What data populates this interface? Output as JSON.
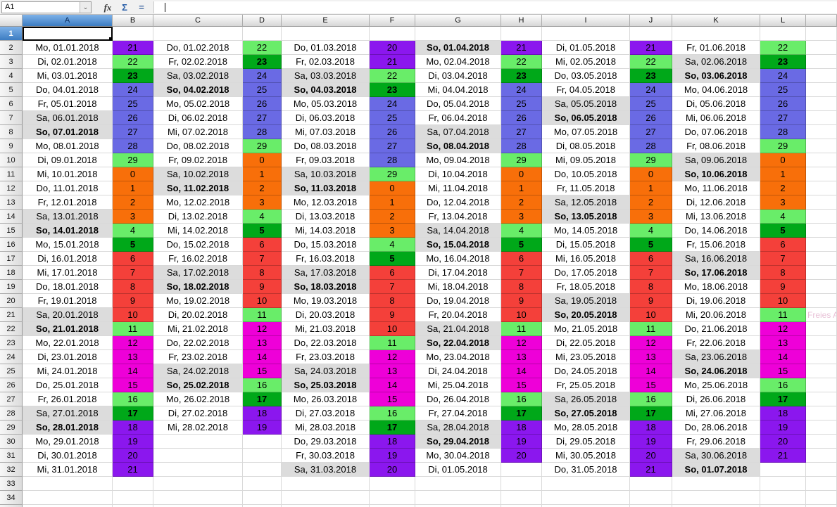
{
  "formula_bar": {
    "name_box_value": "A1",
    "dropdown_icon": "⌄",
    "function_wizard_icon": "fx",
    "sum_icon": "Σ",
    "formula_icon": "="
  },
  "sheet": {
    "selected_cell": "A1",
    "columns": [
      "A",
      "B",
      "C",
      "D",
      "E",
      "F",
      "G",
      "H",
      "I",
      "J",
      "K",
      "L"
    ],
    "row_count": 35,
    "last_full_row": 34,
    "note_overflow": {
      "text": "Freies Ar",
      "row": 21,
      "column": "M"
    }
  },
  "colors": {
    "purple": "#8b17ee",
    "light_green": "#69ed69",
    "dark_green": "#00a819",
    "blue": "#6a6ae4",
    "orange": "#f86f0a",
    "red": "#f4403a",
    "magenta": "#ee00d8",
    "weekend_gray": "#dcdcdc",
    "selection_header_blue": "#3c7cc2",
    "note_text": "#e9c2d8"
  },
  "number_color_map": {
    "0": "orange",
    "1": "orange",
    "2": "orange",
    "3": "orange",
    "4": "light_green",
    "5": "dark_green",
    "6": "red",
    "7": "red",
    "8": "red",
    "9": "red",
    "10": "red",
    "11": "light_green",
    "12": "magenta",
    "13": "magenta",
    "14": "magenta",
    "15": "magenta",
    "16": "light_green",
    "17": "dark_green",
    "18": "purple",
    "19": "purple",
    "20": "purple",
    "21": "purple",
    "22": "light_green",
    "23": "dark_green",
    "24": "blue",
    "25": "blue",
    "26": "blue",
    "27": "blue",
    "28": "blue",
    "29": "light_green"
  },
  "bold_numbers": [
    5,
    17,
    23
  ],
  "calendar": {
    "first_data_row": 2,
    "months": [
      {
        "date_column": "A",
        "number_column": "B",
        "days": [
          [
            "Mo, 01.01.2018",
            21
          ],
          [
            "Di, 02.01.2018",
            22
          ],
          [
            "Mi, 03.01.2018",
            23
          ],
          [
            "Do, 04.01.2018",
            24
          ],
          [
            "Fr, 05.01.2018",
            25
          ],
          [
            "Sa, 06.01.2018",
            26
          ],
          [
            "So, 07.01.2018",
            27
          ],
          [
            "Mo, 08.01.2018",
            28
          ],
          [
            "Di, 09.01.2018",
            29
          ],
          [
            "Mi, 10.01.2018",
            0
          ],
          [
            "Do, 11.01.2018",
            1
          ],
          [
            "Fr, 12.01.2018",
            2
          ],
          [
            "Sa, 13.01.2018",
            3
          ],
          [
            "So, 14.01.2018",
            4
          ],
          [
            "Mo, 15.01.2018",
            5
          ],
          [
            "Di, 16.01.2018",
            6
          ],
          [
            "Mi, 17.01.2018",
            7
          ],
          [
            "Do, 18.01.2018",
            8
          ],
          [
            "Fr, 19.01.2018",
            9
          ],
          [
            "Sa, 20.01.2018",
            10
          ],
          [
            "So, 21.01.2018",
            11
          ],
          [
            "Mo, 22.01.2018",
            12
          ],
          [
            "Di, 23.01.2018",
            13
          ],
          [
            "Mi, 24.01.2018",
            14
          ],
          [
            "Do, 25.01.2018",
            15
          ],
          [
            "Fr, 26.01.2018",
            16
          ],
          [
            "Sa, 27.01.2018",
            17
          ],
          [
            "So, 28.01.2018",
            18
          ],
          [
            "Mo, 29.01.2018",
            19
          ],
          [
            "Di, 30.01.2018",
            20
          ],
          [
            "Mi, 31.01.2018",
            21
          ]
        ]
      },
      {
        "date_column": "C",
        "number_column": "D",
        "days": [
          [
            "Do, 01.02.2018",
            22
          ],
          [
            "Fr, 02.02.2018",
            23
          ],
          [
            "Sa, 03.02.2018",
            24
          ],
          [
            "So, 04.02.2018",
            25
          ],
          [
            "Mo, 05.02.2018",
            26
          ],
          [
            "Di, 06.02.2018",
            27
          ],
          [
            "Mi, 07.02.2018",
            28
          ],
          [
            "Do, 08.02.2018",
            29
          ],
          [
            "Fr, 09.02.2018",
            0
          ],
          [
            "Sa, 10.02.2018",
            1
          ],
          [
            "So, 11.02.2018",
            2
          ],
          [
            "Mo, 12.02.2018",
            3
          ],
          [
            "Di, 13.02.2018",
            4
          ],
          [
            "Mi, 14.02.2018",
            5
          ],
          [
            "Do, 15.02.2018",
            6
          ],
          [
            "Fr, 16.02.2018",
            7
          ],
          [
            "Sa, 17.02.2018",
            8
          ],
          [
            "So, 18.02.2018",
            9
          ],
          [
            "Mo, 19.02.2018",
            10
          ],
          [
            "Di, 20.02.2018",
            11
          ],
          [
            "Mi, 21.02.2018",
            12
          ],
          [
            "Do, 22.02.2018",
            13
          ],
          [
            "Fr, 23.02.2018",
            14
          ],
          [
            "Sa, 24.02.2018",
            15
          ],
          [
            "So, 25.02.2018",
            16
          ],
          [
            "Mo, 26.02.2018",
            17
          ],
          [
            "Di, 27.02.2018",
            18
          ],
          [
            "Mi, 28.02.2018",
            19
          ]
        ]
      },
      {
        "date_column": "E",
        "number_column": "F",
        "days": [
          [
            "Do, 01.03.2018",
            20
          ],
          [
            "Fr, 02.03.2018",
            21
          ],
          [
            "Sa, 03.03.2018",
            22
          ],
          [
            "So, 04.03.2018",
            23
          ],
          [
            "Mo, 05.03.2018",
            24
          ],
          [
            "Di, 06.03.2018",
            25
          ],
          [
            "Mi, 07.03.2018",
            26
          ],
          [
            "Do, 08.03.2018",
            27
          ],
          [
            "Fr, 09.03.2018",
            28
          ],
          [
            "Sa, 10.03.2018",
            29
          ],
          [
            "So, 11.03.2018",
            0
          ],
          [
            "Mo, 12.03.2018",
            1
          ],
          [
            "Di, 13.03.2018",
            2
          ],
          [
            "Mi, 14.03.2018",
            3
          ],
          [
            "Do, 15.03.2018",
            4
          ],
          [
            "Fr, 16.03.2018",
            5
          ],
          [
            "Sa, 17.03.2018",
            6
          ],
          [
            "So, 18.03.2018",
            7
          ],
          [
            "Mo, 19.03.2018",
            8
          ],
          [
            "Di, 20.03.2018",
            9
          ],
          [
            "Mi, 21.03.2018",
            10
          ],
          [
            "Do, 22.03.2018",
            11
          ],
          [
            "Fr, 23.03.2018",
            12
          ],
          [
            "Sa, 24.03.2018",
            13
          ],
          [
            "So, 25.03.2018",
            14
          ],
          [
            "Mo, 26.03.2018",
            15
          ],
          [
            "Di, 27.03.2018",
            16
          ],
          [
            "Mi, 28.03.2018",
            17
          ],
          [
            "Do, 29.03.2018",
            18
          ],
          [
            "Fr, 30.03.2018",
            19
          ],
          [
            "Sa, 31.03.2018",
            20
          ]
        ]
      },
      {
        "date_column": "G",
        "number_column": "H",
        "days": [
          [
            "So, 01.04.2018",
            21
          ],
          [
            "Mo, 02.04.2018",
            22
          ],
          [
            "Di, 03.04.2018",
            23
          ],
          [
            "Mi, 04.04.2018",
            24
          ],
          [
            "Do, 05.04.2018",
            25
          ],
          [
            "Fr, 06.04.2018",
            26
          ],
          [
            "Sa, 07.04.2018",
            27
          ],
          [
            "So, 08.04.2018",
            28
          ],
          [
            "Mo, 09.04.2018",
            29
          ],
          [
            "Di, 10.04.2018",
            0
          ],
          [
            "Mi, 11.04.2018",
            1
          ],
          [
            "Do, 12.04.2018",
            2
          ],
          [
            "Fr, 13.04.2018",
            3
          ],
          [
            "Sa, 14.04.2018",
            4
          ],
          [
            "So, 15.04.2018",
            5
          ],
          [
            "Mo, 16.04.2018",
            6
          ],
          [
            "Di, 17.04.2018",
            7
          ],
          [
            "Mi, 18.04.2018",
            8
          ],
          [
            "Do, 19.04.2018",
            9
          ],
          [
            "Fr, 20.04.2018",
            10
          ],
          [
            "Sa, 21.04.2018",
            11
          ],
          [
            "So, 22.04.2018",
            12
          ],
          [
            "Mo, 23.04.2018",
            13
          ],
          [
            "Di, 24.04.2018",
            14
          ],
          [
            "Mi, 25.04.2018",
            15
          ],
          [
            "Do, 26.04.2018",
            16
          ],
          [
            "Fr, 27.04.2018",
            17
          ],
          [
            "Sa, 28.04.2018",
            18
          ],
          [
            "So, 29.04.2018",
            19
          ],
          [
            "Mo, 30.04.2018",
            20
          ],
          [
            "Di, 01.05.2018",
            null
          ]
        ]
      },
      {
        "date_column": "I",
        "number_column": "J",
        "days": [
          [
            "Di, 01.05.2018",
            21
          ],
          [
            "Mi, 02.05.2018",
            22
          ],
          [
            "Do, 03.05.2018",
            23
          ],
          [
            "Fr, 04.05.2018",
            24
          ],
          [
            "Sa, 05.05.2018",
            25
          ],
          [
            "So, 06.05.2018",
            26
          ],
          [
            "Mo, 07.05.2018",
            27
          ],
          [
            "Di, 08.05.2018",
            28
          ],
          [
            "Mi, 09.05.2018",
            29
          ],
          [
            "Do, 10.05.2018",
            0
          ],
          [
            "Fr, 11.05.2018",
            1
          ],
          [
            "Sa, 12.05.2018",
            2
          ],
          [
            "So, 13.05.2018",
            3
          ],
          [
            "Mo, 14.05.2018",
            4
          ],
          [
            "Di, 15.05.2018",
            5
          ],
          [
            "Mi, 16.05.2018",
            6
          ],
          [
            "Do, 17.05.2018",
            7
          ],
          [
            "Fr, 18.05.2018",
            8
          ],
          [
            "Sa, 19.05.2018",
            9
          ],
          [
            "So, 20.05.2018",
            10
          ],
          [
            "Mo, 21.05.2018",
            11
          ],
          [
            "Di, 22.05.2018",
            12
          ],
          [
            "Mi, 23.05.2018",
            13
          ],
          [
            "Do, 24.05.2018",
            14
          ],
          [
            "Fr, 25.05.2018",
            15
          ],
          [
            "Sa, 26.05.2018",
            16
          ],
          [
            "So, 27.05.2018",
            17
          ],
          [
            "Mo, 28.05.2018",
            18
          ],
          [
            "Di, 29.05.2018",
            19
          ],
          [
            "Mi, 30.05.2018",
            20
          ],
          [
            "Do, 31.05.2018",
            21
          ]
        ]
      },
      {
        "date_column": "K",
        "number_column": "L",
        "days": [
          [
            "Fr, 01.06.2018",
            22
          ],
          [
            "Sa, 02.06.2018",
            23
          ],
          [
            "So, 03.06.2018",
            24
          ],
          [
            "Mo, 04.06.2018",
            25
          ],
          [
            "Di, 05.06.2018",
            26
          ],
          [
            "Mi, 06.06.2018",
            27
          ],
          [
            "Do, 07.06.2018",
            28
          ],
          [
            "Fr, 08.06.2018",
            29
          ],
          [
            "Sa, 09.06.2018",
            0
          ],
          [
            "So, 10.06.2018",
            1
          ],
          [
            "Mo, 11.06.2018",
            2
          ],
          [
            "Di, 12.06.2018",
            3
          ],
          [
            "Mi, 13.06.2018",
            4
          ],
          [
            "Do, 14.06.2018",
            5
          ],
          [
            "Fr, 15.06.2018",
            6
          ],
          [
            "Sa, 16.06.2018",
            7
          ],
          [
            "So, 17.06.2018",
            8
          ],
          [
            "Mo, 18.06.2018",
            9
          ],
          [
            "Di, 19.06.2018",
            10
          ],
          [
            "Mi, 20.06.2018",
            11
          ],
          [
            "Do, 21.06.2018",
            12
          ],
          [
            "Fr, 22.06.2018",
            13
          ],
          [
            "Sa, 23.06.2018",
            14
          ],
          [
            "So, 24.06.2018",
            15
          ],
          [
            "Mo, 25.06.2018",
            16
          ],
          [
            "Di, 26.06.2018",
            17
          ],
          [
            "Mi, 27.06.2018",
            18
          ],
          [
            "Do, 28.06.2018",
            19
          ],
          [
            "Fr, 29.06.2018",
            20
          ],
          [
            "Sa, 30.06.2018",
            21
          ],
          [
            "So, 01.07.2018",
            null
          ]
        ]
      }
    ]
  }
}
